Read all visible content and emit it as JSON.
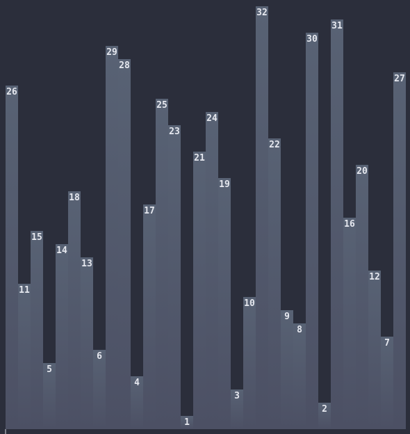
{
  "chart_data": {
    "type": "bar",
    "title": "",
    "xlabel": "",
    "ylabel": "",
    "ylim": [
      0,
      33
    ],
    "grid": false,
    "legend": "none",
    "colors": {
      "background": "#2b2e3b",
      "bar_top": "#586274",
      "bar_bottom": "#4c5064",
      "label": "#e6e8ef"
    },
    "values": [
      26,
      11,
      15,
      5,
      14,
      18,
      13,
      6,
      29,
      28,
      4,
      17,
      25,
      23,
      1,
      21,
      24,
      19,
      3,
      10,
      32,
      22,
      9,
      8,
      30,
      2,
      31,
      16,
      20,
      12,
      7,
      27
    ]
  }
}
